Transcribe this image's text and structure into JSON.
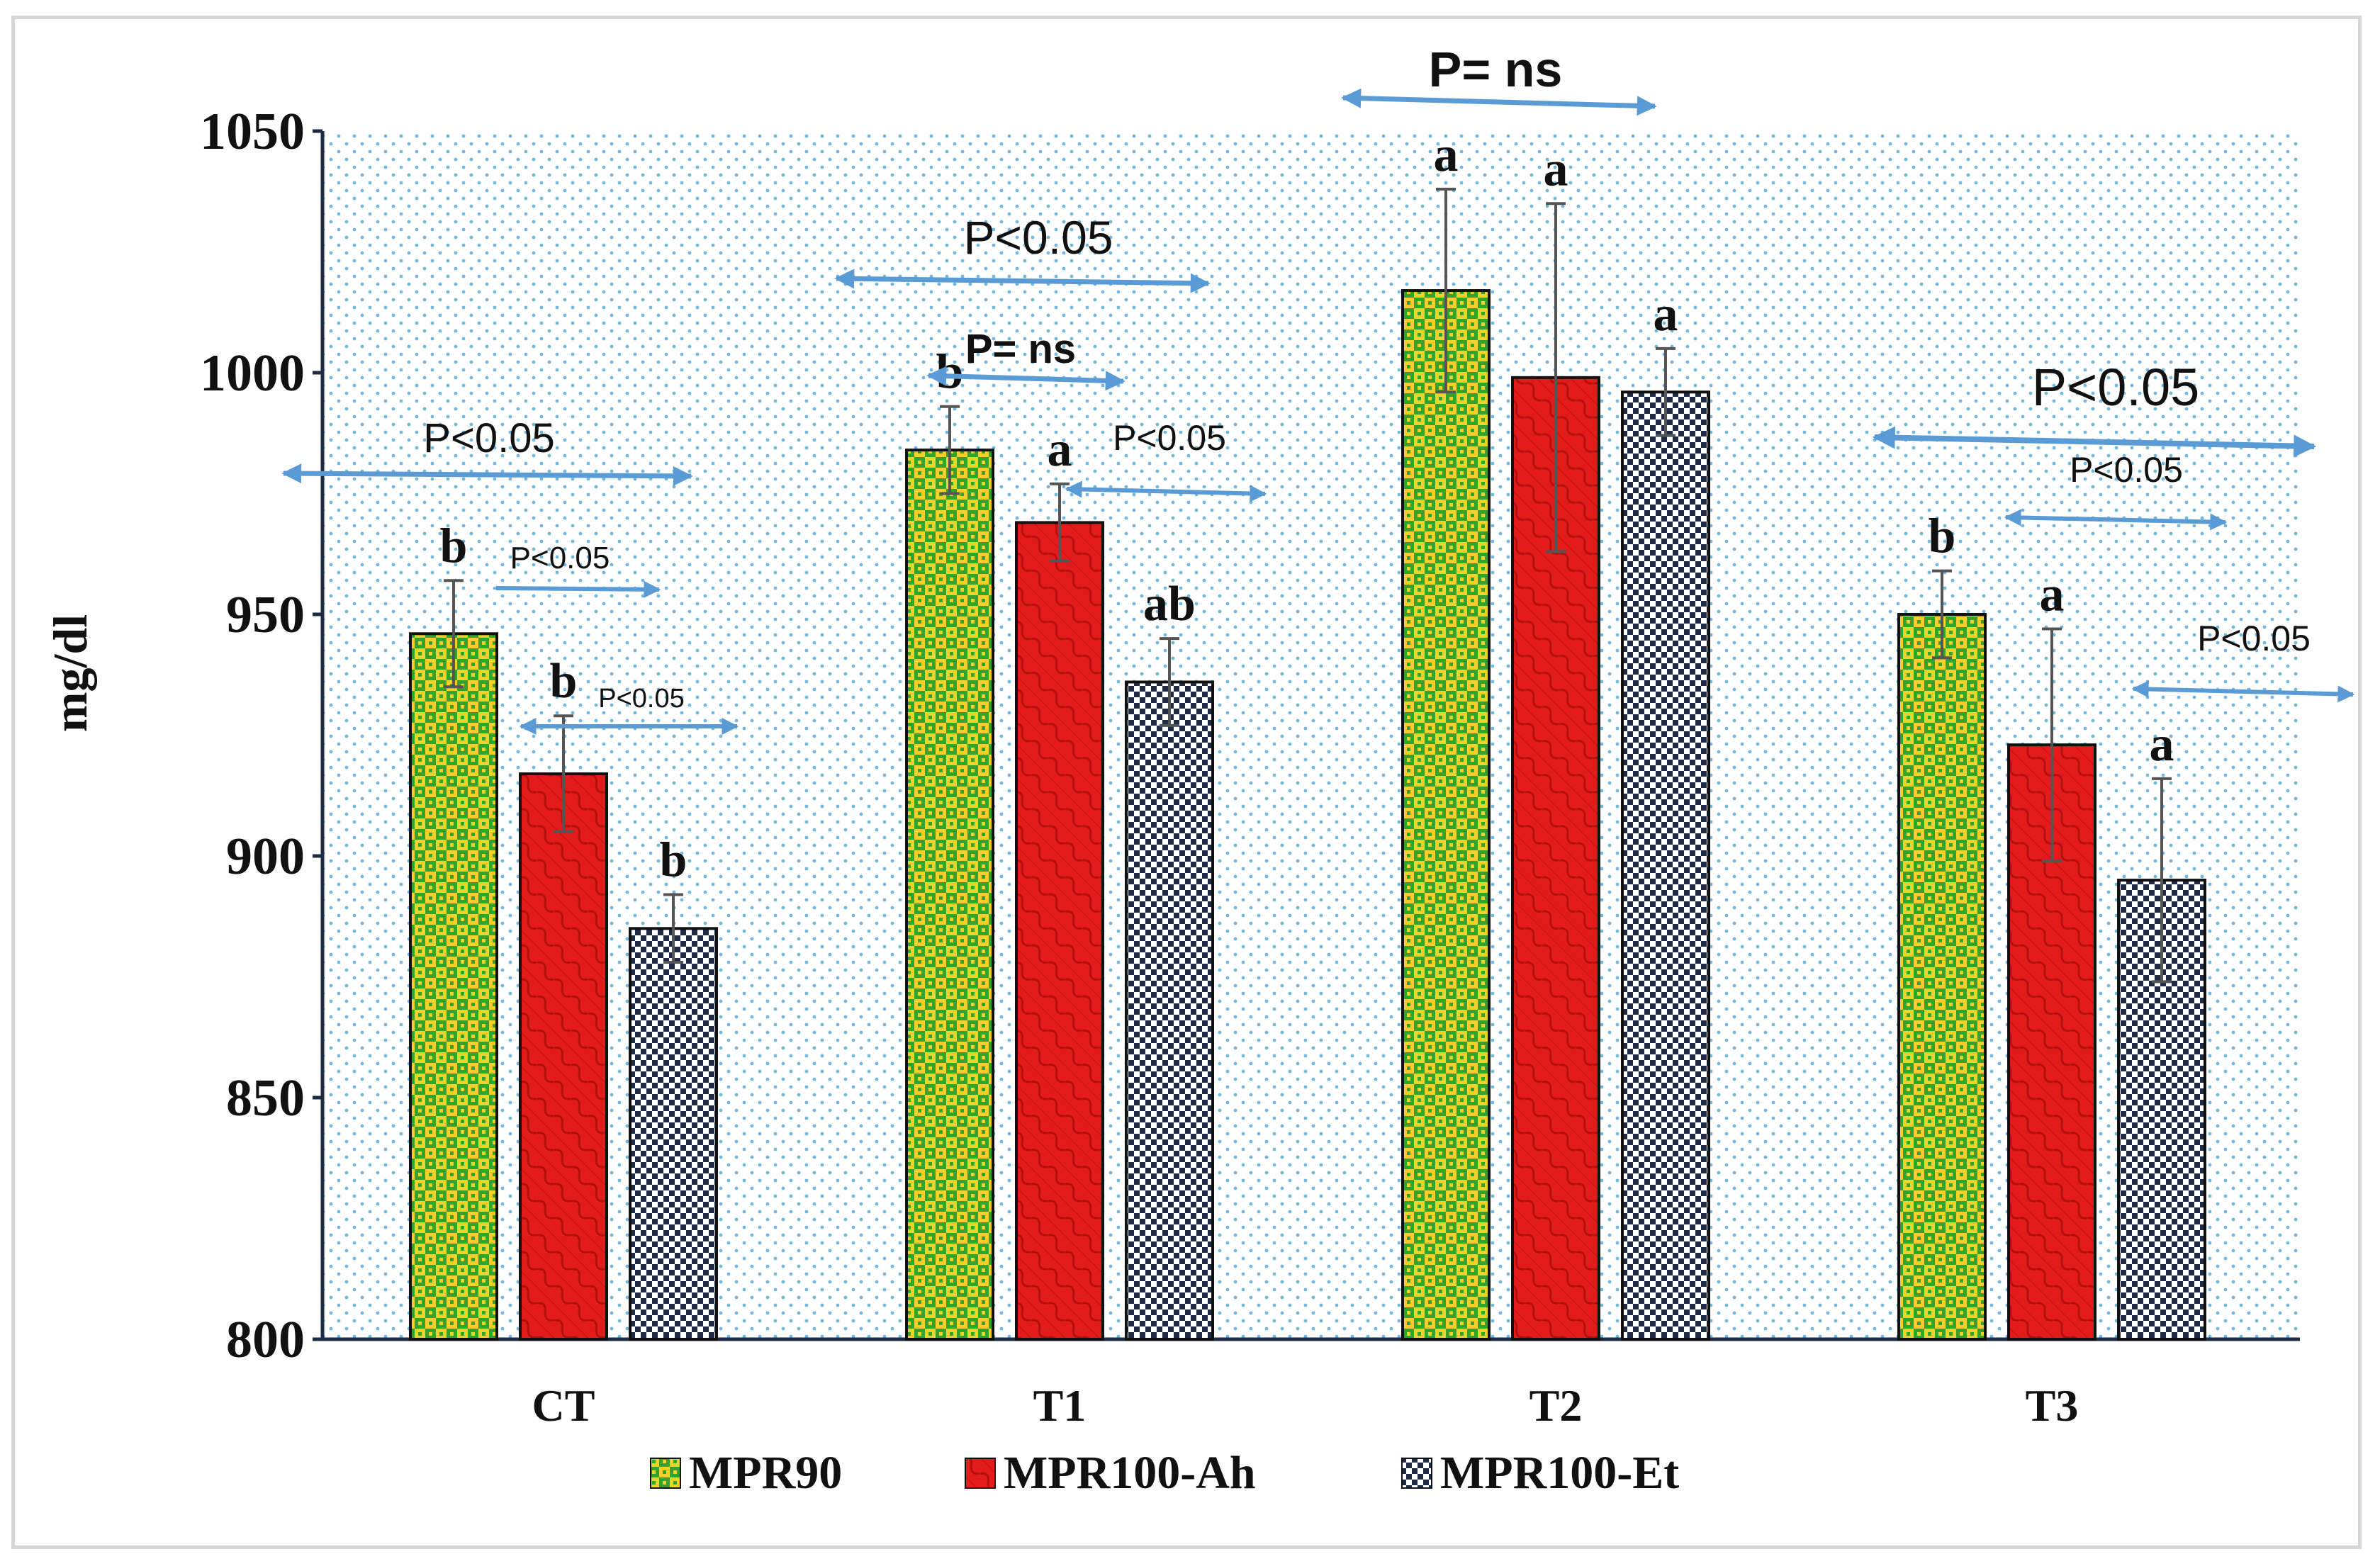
{
  "colors": {
    "mpr90_green": "#34a32c",
    "mpr90_yellow": "#f2d22a",
    "mpr100ah_red": "#e31b1b",
    "mpr100et_navy": "#1e2a46",
    "arrow_blue": "#5b9bd5",
    "dot_blue": "#6fb8e2"
  },
  "chart_data": {
    "type": "bar",
    "title": "",
    "xlabel": "",
    "ylabel": "mg/dl",
    "ylim": [
      800,
      1050
    ],
    "yticks": [
      "800",
      "850",
      "900",
      "950",
      "1000",
      "1050"
    ],
    "categories": [
      "CT",
      "T1",
      "T2",
      "T3"
    ],
    "series": [
      {
        "name": "MPR90",
        "values": [
          946,
          984,
          1017,
          950
        ],
        "errors": [
          11,
          9,
          21,
          9
        ],
        "letters": [
          "b",
          "b",
          "a",
          "b"
        ]
      },
      {
        "name": "MPR100-Ah",
        "values": [
          917,
          969,
          999,
          923
        ],
        "errors": [
          12,
          8,
          36,
          24
        ],
        "letters": [
          "b",
          "a",
          "a",
          "a"
        ]
      },
      {
        "name": "MPR100-Et",
        "values": [
          885,
          936,
          996,
          895
        ],
        "errors": [
          7,
          9,
          9,
          21
        ],
        "letters": [
          "b",
          "ab",
          "a",
          "a"
        ]
      }
    ],
    "annotations": {
      "CT_overall": "P<0.05",
      "CT_90_vs_ah": "P<0.05",
      "CT_ah_vs_et": "P<0.05",
      "T1_overall": "P<0.05",
      "T1_90_vs_ah": "P= ns",
      "T1_ah_vs_et": "P<0.05",
      "T2_overall": "P= ns",
      "T3_overall": "P<0.05",
      "T3_90_vs_ah": "P<0.05",
      "T3_ah_vs_et": "P<0.05"
    },
    "legend": [
      "MPR90",
      "MPR100-Ah",
      "MPR100-Et"
    ],
    "legend_position": "bottom"
  }
}
